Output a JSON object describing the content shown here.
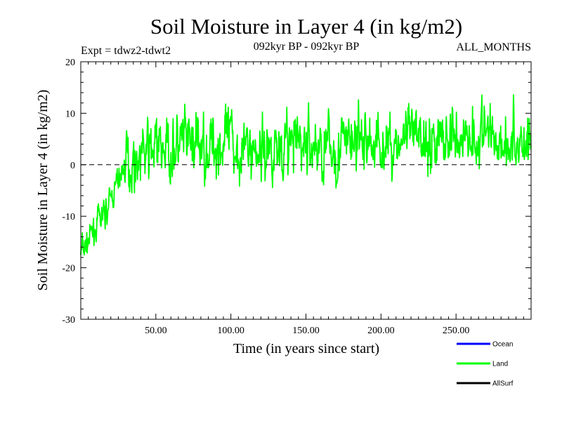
{
  "chart_data": {
    "type": "line",
    "title": "Soil Moisture in Layer 4 (in kg/m2)",
    "subtitle_left": "Expt = tdwz2-tdwt2",
    "subtitle_center": "092kyr BP - 092kyr BP",
    "subtitle_right": "ALL_MONTHS",
    "xlabel": "Time (in years since start)",
    "ylabel": "Soil Moisture in Layer 4 (in kg/m2)",
    "xlim": [
      0,
      300
    ],
    "ylim": [
      -30,
      20
    ],
    "x_ticks": [
      50,
      100,
      150,
      200,
      250
    ],
    "x_tick_labels": [
      "50.00",
      "100.00",
      "150.00",
      "200.00",
      "250.00"
    ],
    "y_ticks": [
      -30,
      -20,
      -10,
      0,
      10,
      20
    ],
    "y_tick_labels": [
      "-30",
      "-20",
      "-10",
      "0",
      "10",
      "20"
    ],
    "reference_line": 0,
    "x_step": 0.25,
    "legend": [
      {
        "name": "Ocean",
        "color": "#0000ff"
      },
      {
        "name": "Land",
        "color": "#00ff00"
      },
      {
        "name": "AllSurf",
        "color": "#000000"
      }
    ],
    "series": [
      {
        "name": "Land",
        "color": "#00ff00",
        "x_start": 0,
        "x_end": 300,
        "approx_points_per_year": 4,
        "anchors_x": [
          0,
          5,
          10,
          15,
          20,
          25,
          30,
          40,
          50,
          60,
          70,
          80,
          90,
          100,
          110,
          120,
          130,
          140,
          150,
          160,
          170,
          180,
          190,
          200,
          210,
          220,
          230,
          240,
          250,
          260,
          270,
          280,
          290,
          300
        ],
        "anchors_y": [
          -17,
          -15,
          -12,
          -10,
          -7,
          -3,
          0,
          2,
          3,
          3,
          4,
          3.5,
          4,
          4,
          3,
          3,
          3.5,
          4,
          4,
          3,
          3,
          4.5,
          4.5,
          4,
          4,
          5,
          5,
          5,
          5,
          6,
          6,
          5,
          4,
          5
        ]
      }
    ]
  }
}
